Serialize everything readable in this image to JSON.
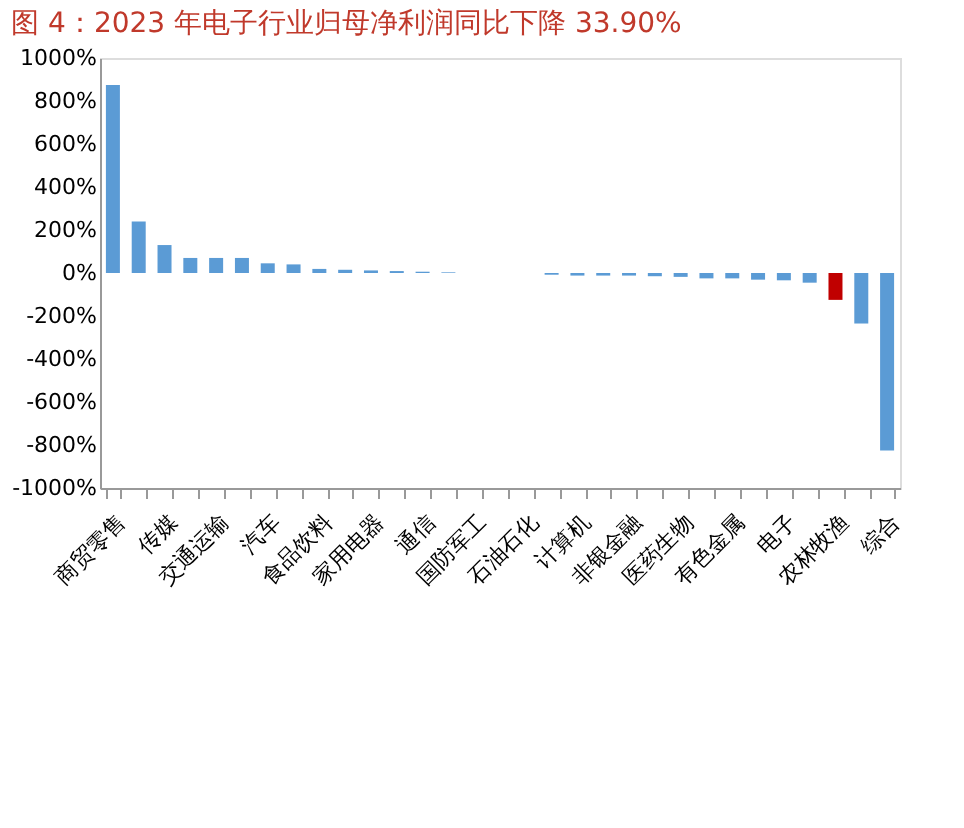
{
  "chart_data": {
    "type": "bar",
    "title": "图 4：2023 年电子行业归母净利润同比下降 33.90%",
    "categories": [
      "商贸零售",
      null,
      "传媒",
      null,
      "交通运输",
      null,
      "汽车",
      null,
      "食品饮料",
      null,
      "家用电器",
      null,
      "通信",
      null,
      "国防军工",
      null,
      "石油石化",
      null,
      "计算机",
      null,
      "非银金融",
      null,
      "医药生物",
      null,
      "有色金属",
      null,
      "电子",
      null,
      "农林牧渔",
      null,
      "综合"
    ],
    "values": [
      875,
      240,
      130,
      70,
      70,
      70,
      45,
      40,
      19,
      15,
      12,
      9,
      6,
      3,
      null,
      null,
      null,
      -8,
      -12,
      -12,
      -12,
      -15,
      -18,
      -25,
      -25,
      -31,
      -34,
      -45,
      -125,
      -235,
      -825
    ],
    "colors": [
      "#5b9bd5",
      "#5b9bd5",
      "#5b9bd5",
      "#5b9bd5",
      "#5b9bd5",
      "#5b9bd5",
      "#5b9bd5",
      "#5b9bd5",
      "#5b9bd5",
      "#5b9bd5",
      "#5b9bd5",
      "#5b9bd5",
      "#5b9bd5",
      "#5b9bd5",
      "#5b9bd5",
      "#5b9bd5",
      "#5b9bd5",
      "#5b9bd5",
      "#5b9bd5",
      "#5b9bd5",
      "#5b9bd5",
      "#5b9bd5",
      "#5b9bd5",
      "#5b9bd5",
      "#5b9bd5",
      "#5b9bd5",
      "#5b9bd5",
      "#5b9bd5",
      "#c00000",
      "#5b9bd5",
      "#5b9bd5"
    ],
    "ylim": [
      -1000,
      1000
    ],
    "yticks": [
      {
        "value": -1000,
        "label": "-1000%"
      },
      {
        "value": -800,
        "label": "-800%"
      },
      {
        "value": -600,
        "label": "-600%"
      },
      {
        "value": -400,
        "label": "-400%"
      },
      {
        "value": -200,
        "label": "-200%"
      },
      {
        "value": 0,
        "label": "0%"
      },
      {
        "value": 200,
        "label": "200%"
      },
      {
        "value": 400,
        "label": "400%"
      },
      {
        "value": 600,
        "label": "600%"
      },
      {
        "value": 800,
        "label": "800%"
      },
      {
        "value": 1000,
        "label": "1000%"
      }
    ],
    "grid": false
  }
}
